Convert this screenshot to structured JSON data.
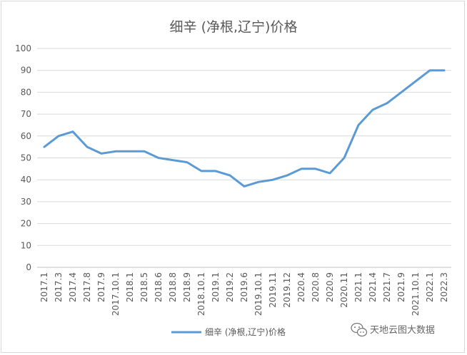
{
  "chart_data": {
    "type": "line",
    "title": "细辛 (净根,辽宁)价格",
    "xlabel": "",
    "ylabel": "",
    "ylim": [
      0,
      100
    ],
    "yticks": [
      0,
      10,
      20,
      30,
      40,
      50,
      60,
      70,
      80,
      90,
      100
    ],
    "grid": true,
    "legend_position": "bottom",
    "categories": [
      "2017.1",
      "2017.3",
      "2017.4",
      "2017.8",
      "2017.9",
      "2017.10.1",
      "2018.1",
      "2018.5",
      "2018.6",
      "2018.8",
      "2018.9",
      "2018.10.1",
      "2019.1",
      "2019.2",
      "2019.6",
      "2019.10.1",
      "2019.11",
      "2019.12",
      "2020.4",
      "2020.8",
      "2020.9",
      "2020.11",
      "2021.1",
      "2021.4",
      "2021.7",
      "2021.9",
      "2021.10.1",
      "2022.1",
      "2022.3"
    ],
    "series": [
      {
        "name": "细辛 (净根,辽宁)价格",
        "color": "#5b9bd5",
        "values": [
          55,
          60,
          62,
          55,
          52,
          53,
          53,
          53,
          50,
          49,
          48,
          44,
          44,
          42,
          37,
          39,
          40,
          42,
          45,
          45,
          43,
          50,
          65,
          72,
          75,
          80,
          85,
          90,
          90
        ]
      }
    ]
  },
  "watermark": {
    "text": "天地云图大数据",
    "icon": "wechat-icon"
  }
}
